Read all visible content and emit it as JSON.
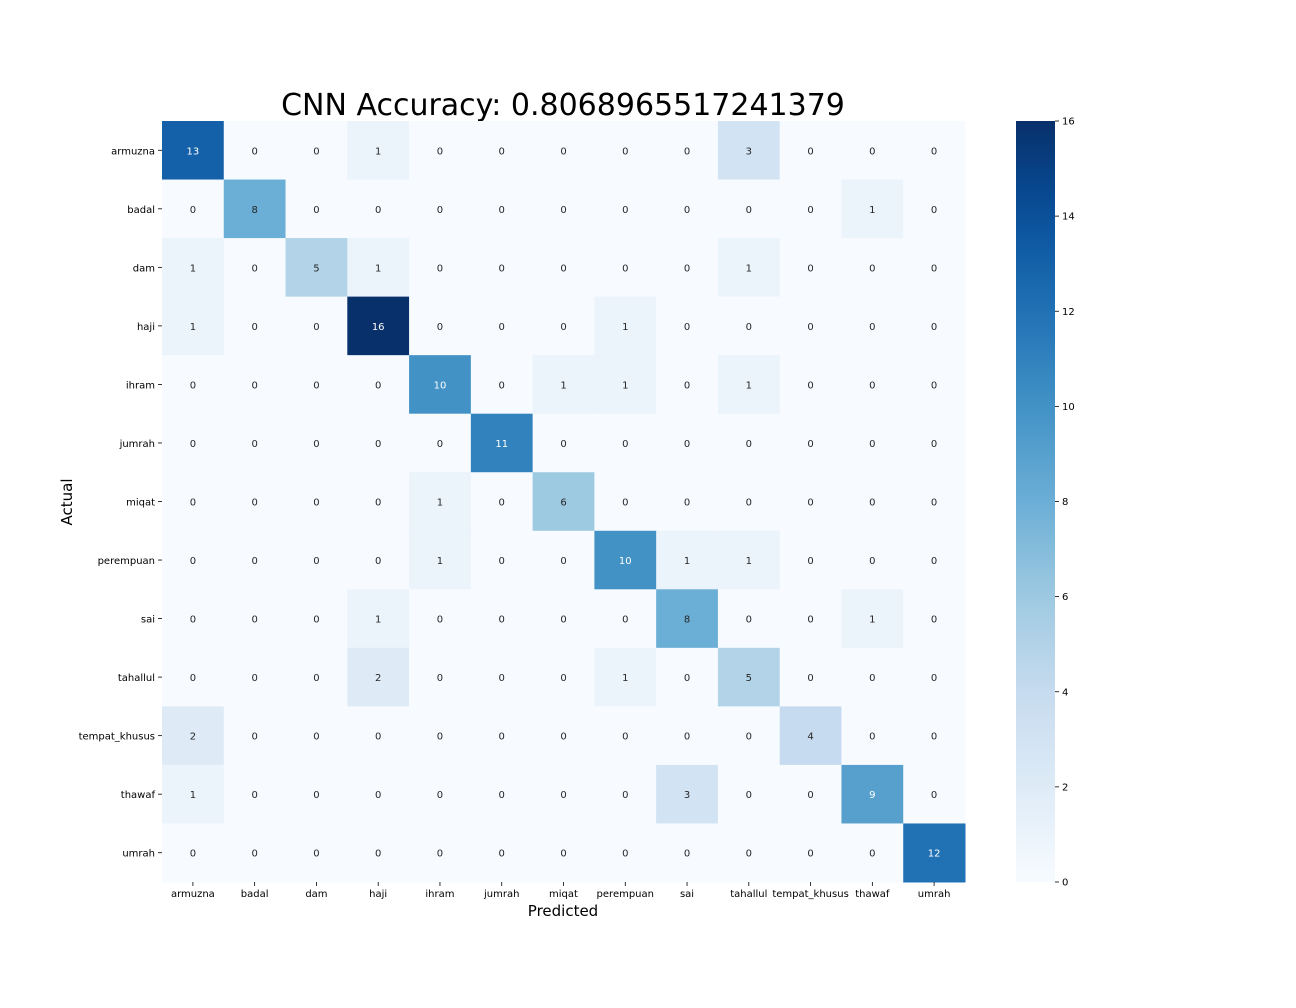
{
  "chart_data": {
    "type": "heatmap",
    "title": "CNN Accuracy: 0.8068965517241379",
    "xlabel": "Predicted",
    "ylabel": "Actual",
    "x_categories": [
      "armuzna",
      "badal",
      "dam",
      "haji",
      "ihram",
      "jumrah",
      "miqat",
      "perempuan",
      "sai",
      "tahallul",
      "tempat_khusus",
      "thawaf",
      "umrah"
    ],
    "y_categories": [
      "armuzna",
      "badal",
      "dam",
      "haji",
      "ihram",
      "jumrah",
      "miqat",
      "perempuan",
      "sai",
      "tahallul",
      "tempat_khusus",
      "thawaf",
      "umrah"
    ],
    "values": [
      [
        13,
        0,
        0,
        1,
        0,
        0,
        0,
        0,
        0,
        3,
        0,
        0,
        0
      ],
      [
        0,
        8,
        0,
        0,
        0,
        0,
        0,
        0,
        0,
        0,
        0,
        1,
        0
      ],
      [
        1,
        0,
        5,
        1,
        0,
        0,
        0,
        0,
        0,
        1,
        0,
        0,
        0
      ],
      [
        1,
        0,
        0,
        16,
        0,
        0,
        0,
        1,
        0,
        0,
        0,
        0,
        0
      ],
      [
        0,
        0,
        0,
        0,
        10,
        0,
        1,
        1,
        0,
        1,
        0,
        0,
        0
      ],
      [
        0,
        0,
        0,
        0,
        0,
        11,
        0,
        0,
        0,
        0,
        0,
        0,
        0
      ],
      [
        0,
        0,
        0,
        0,
        1,
        0,
        6,
        0,
        0,
        0,
        0,
        0,
        0
      ],
      [
        0,
        0,
        0,
        0,
        1,
        0,
        0,
        10,
        1,
        1,
        0,
        0,
        0
      ],
      [
        0,
        0,
        0,
        1,
        0,
        0,
        0,
        0,
        8,
        0,
        0,
        1,
        0
      ],
      [
        0,
        0,
        0,
        2,
        0,
        0,
        0,
        1,
        0,
        5,
        0,
        0,
        0
      ],
      [
        2,
        0,
        0,
        0,
        0,
        0,
        0,
        0,
        0,
        0,
        4,
        0,
        0
      ],
      [
        1,
        0,
        0,
        0,
        0,
        0,
        0,
        0,
        3,
        0,
        0,
        9,
        0
      ],
      [
        0,
        0,
        0,
        0,
        0,
        0,
        0,
        0,
        0,
        0,
        0,
        0,
        12
      ]
    ],
    "colorbar": {
      "min": 0,
      "max": 16,
      "ticks": [
        0,
        2,
        4,
        6,
        8,
        10,
        12,
        14,
        16
      ],
      "colormap": "Blues",
      "color_low": "#f7fbff",
      "color_high": "#08306b"
    },
    "annotations": true
  }
}
